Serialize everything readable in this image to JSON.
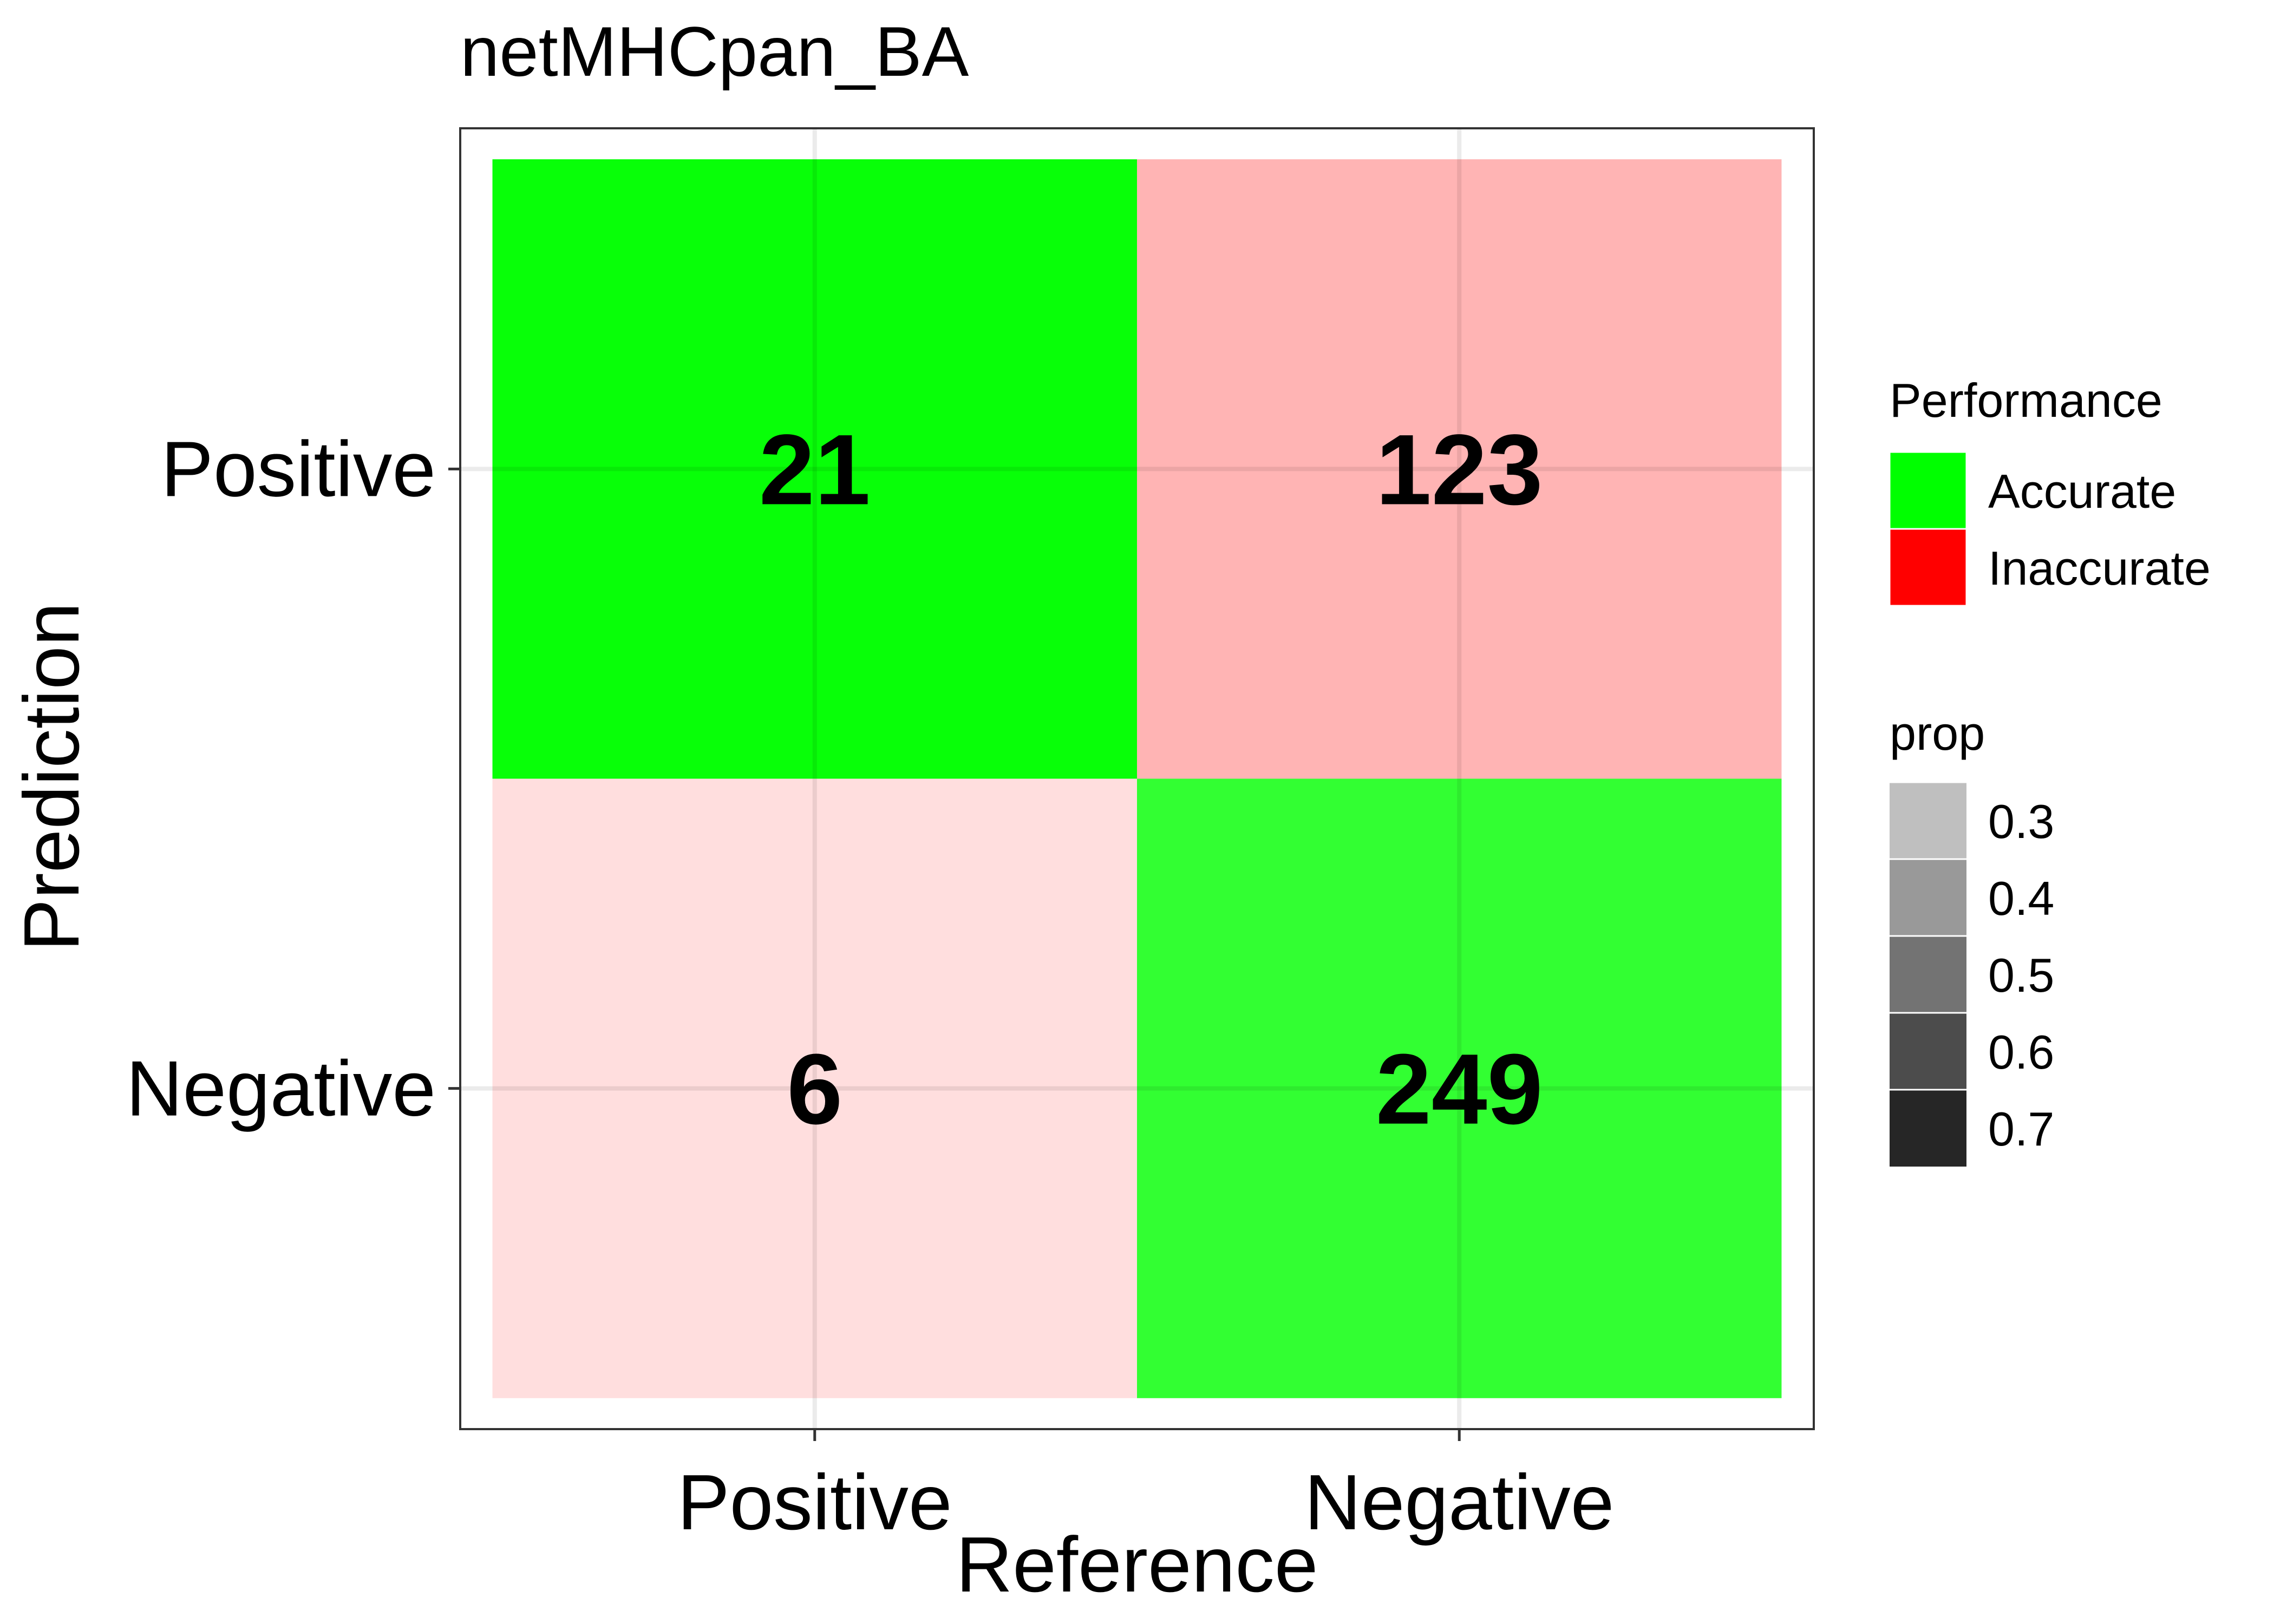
{
  "chart_data": {
    "type": "heatmap",
    "title": "netMHCpan_BA",
    "xlabel": "Reference",
    "ylabel": "Prediction",
    "x_categories": [
      "Positive",
      "Negative"
    ],
    "y_categories": [
      "Positive",
      "Negative"
    ],
    "cells": [
      {
        "reference": "Positive",
        "prediction": "Positive",
        "count": 21,
        "performance": "Accurate",
        "prop": 0.78
      },
      {
        "reference": "Negative",
        "prediction": "Positive",
        "count": 123,
        "performance": "Inaccurate",
        "prop": 0.33
      },
      {
        "reference": "Positive",
        "prediction": "Negative",
        "count": 6,
        "performance": "Inaccurate",
        "prop": 0.22
      },
      {
        "reference": "Negative",
        "prediction": "Negative",
        "count": 249,
        "performance": "Accurate",
        "prop": 0.67
      }
    ],
    "grid": true,
    "legends": {
      "performance": {
        "title": "Performance",
        "items": [
          {
            "label": "Accurate",
            "color": "#00ff00"
          },
          {
            "label": "Inaccurate",
            "color": "#ff0000"
          }
        ]
      },
      "prop": {
        "title": "prop",
        "items": [
          {
            "label": "0.3",
            "value": 0.3
          },
          {
            "label": "0.4",
            "value": 0.4
          },
          {
            "label": "0.5",
            "value": 0.5
          },
          {
            "label": "0.6",
            "value": 0.6
          },
          {
            "label": "0.7",
            "value": 0.7
          }
        ]
      }
    },
    "legend_placement": "right"
  }
}
